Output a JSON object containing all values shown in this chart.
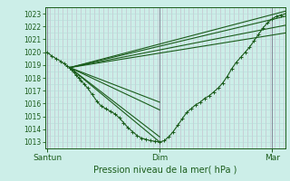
{
  "xlabel": "Pression niveau de la mer( hPa )",
  "xtick_labels": [
    "Santun",
    "Dim",
    "Mar"
  ],
  "xtick_positions": [
    0.0,
    1.0,
    2.0
  ],
  "ylim": [
    1012.5,
    1023.5
  ],
  "yticks": [
    1013,
    1014,
    1015,
    1016,
    1017,
    1018,
    1019,
    1020,
    1021,
    1022,
    1023
  ],
  "bg_color": "#cceee8",
  "grid_color_h": "#b8dcd8",
  "grid_color_v": "#c4b8c8",
  "line_color": "#1a5c1a",
  "fig_bg": "#cceee8",
  "xlim": [
    -0.02,
    2.12
  ],
  "main_line_x": [
    0.0,
    0.04,
    0.08,
    0.12,
    0.15,
    0.18,
    0.2,
    0.22,
    0.24,
    0.26,
    0.28,
    0.3,
    0.33,
    0.36,
    0.4,
    0.44,
    0.48,
    0.52,
    0.56,
    0.6,
    0.64,
    0.68,
    0.72,
    0.76,
    0.8,
    0.84,
    0.88,
    0.92,
    0.96,
    1.0,
    1.04,
    1.08,
    1.12,
    1.16,
    1.2,
    1.24,
    1.28,
    1.32,
    1.36,
    1.4,
    1.44,
    1.48,
    1.52,
    1.56,
    1.6,
    1.64,
    1.68,
    1.72,
    1.76,
    1.8,
    1.84,
    1.88,
    1.92,
    1.96,
    2.0,
    2.04,
    2.08,
    2.12
  ],
  "main_line_y": [
    1020.0,
    1019.7,
    1019.5,
    1019.3,
    1019.1,
    1018.9,
    1018.8,
    1018.6,
    1018.4,
    1018.2,
    1018.0,
    1017.8,
    1017.5,
    1017.2,
    1016.7,
    1016.2,
    1015.8,
    1015.6,
    1015.4,
    1015.2,
    1014.9,
    1014.5,
    1014.1,
    1013.8,
    1013.5,
    1013.3,
    1013.2,
    1013.1,
    1013.05,
    1013.0,
    1013.1,
    1013.4,
    1013.8,
    1014.3,
    1014.8,
    1015.3,
    1015.6,
    1015.9,
    1016.1,
    1016.4,
    1016.6,
    1016.9,
    1017.2,
    1017.6,
    1018.1,
    1018.7,
    1019.2,
    1019.6,
    1020.0,
    1020.4,
    1020.9,
    1021.4,
    1021.9,
    1022.3,
    1022.6,
    1022.8,
    1022.9,
    1023.0
  ],
  "forecast_lines": [
    {
      "x": [
        0.2,
        2.12
      ],
      "y": [
        1018.8,
        1022.1
      ]
    },
    {
      "x": [
        0.2,
        2.12
      ],
      "y": [
        1018.8,
        1021.5
      ]
    },
    {
      "x": [
        0.2,
        2.12
      ],
      "y": [
        1018.8,
        1023.2
      ]
    },
    {
      "x": [
        0.2,
        2.12
      ],
      "y": [
        1018.8,
        1022.8
      ]
    },
    {
      "x": [
        0.2,
        1.0
      ],
      "y": [
        1018.8,
        1013.0
      ]
    },
    {
      "x": [
        0.2,
        1.0
      ],
      "y": [
        1018.8,
        1013.4
      ]
    },
    {
      "x": [
        0.2,
        1.0
      ],
      "y": [
        1018.8,
        1015.5
      ]
    },
    {
      "x": [
        0.2,
        1.0
      ],
      "y": [
        1018.8,
        1016.1
      ]
    }
  ]
}
